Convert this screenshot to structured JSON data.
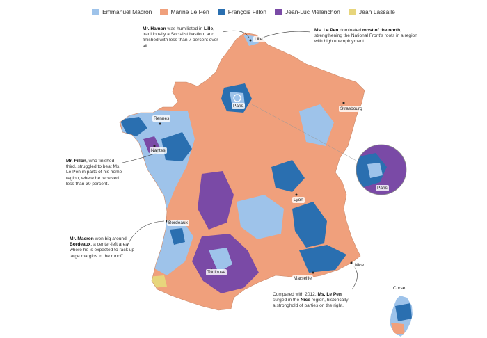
{
  "legend": [
    {
      "name": "Emmanuel Macron",
      "color": "#9ec3ea"
    },
    {
      "name": "Marine Le Pen",
      "color": "#f0a07c"
    },
    {
      "name": "François Fillon",
      "color": "#2a6fb0"
    },
    {
      "name": "Jean-Luc Mélenchon",
      "color": "#7a4aa6"
    },
    {
      "name": "Jean Lassalle",
      "color": "#e7d57c"
    }
  ],
  "colors": {
    "macron": "#9ec3ea",
    "lepen": "#f0a07c",
    "fillon": "#2a6fb0",
    "melenchon": "#7a4aa6",
    "lassalle": "#e7d57c",
    "callout_line": "#333333"
  },
  "cities": {
    "lille": "Lille",
    "paris": "Paris",
    "strasbourg": "Strasbourg",
    "rennes": "Rennes",
    "nantes": "Nantes",
    "lyon": "Lyon",
    "bordeaux": "Bordeaux",
    "toulouse": "Toulouse",
    "marseille": "Marseille",
    "nice": "Nice",
    "corse": "Corse",
    "paris_inset": "Paris"
  },
  "notes": {
    "hamon": {
      "bold1": "Mr. Hamon",
      "text1": " was humiliated in ",
      "bold2": "Lille",
      "text2": ", traditionally a Socialist bastion, and finished with less than 7 percent over all."
    },
    "lepen_north": {
      "bold1": "Ms. Le Pen",
      "text1": " dominated ",
      "bold2": "most of the north",
      "text2": ", strengthening the National Front's roots in a region with high unemployment."
    },
    "fillon": {
      "bold1": "Mr. Fillon",
      "text1": ", who finished third, struggled to beat Ms. Le Pen in parts of his home region, where he received less than 30 percent."
    },
    "macron": {
      "bold1": "Mr. Macron",
      "text1": " won big around ",
      "bold2": "Bordeaux",
      "text2": ", a center-left area where he is expected to rack up large margins in the runoff."
    },
    "lepen_nice": {
      "text0": "Compared with 2012, ",
      "bold1": "Ms. Le Pen",
      "text1": " surged in the ",
      "bold2": "Nice",
      "text2": " region, historically a stronghold of parties on the right."
    }
  }
}
